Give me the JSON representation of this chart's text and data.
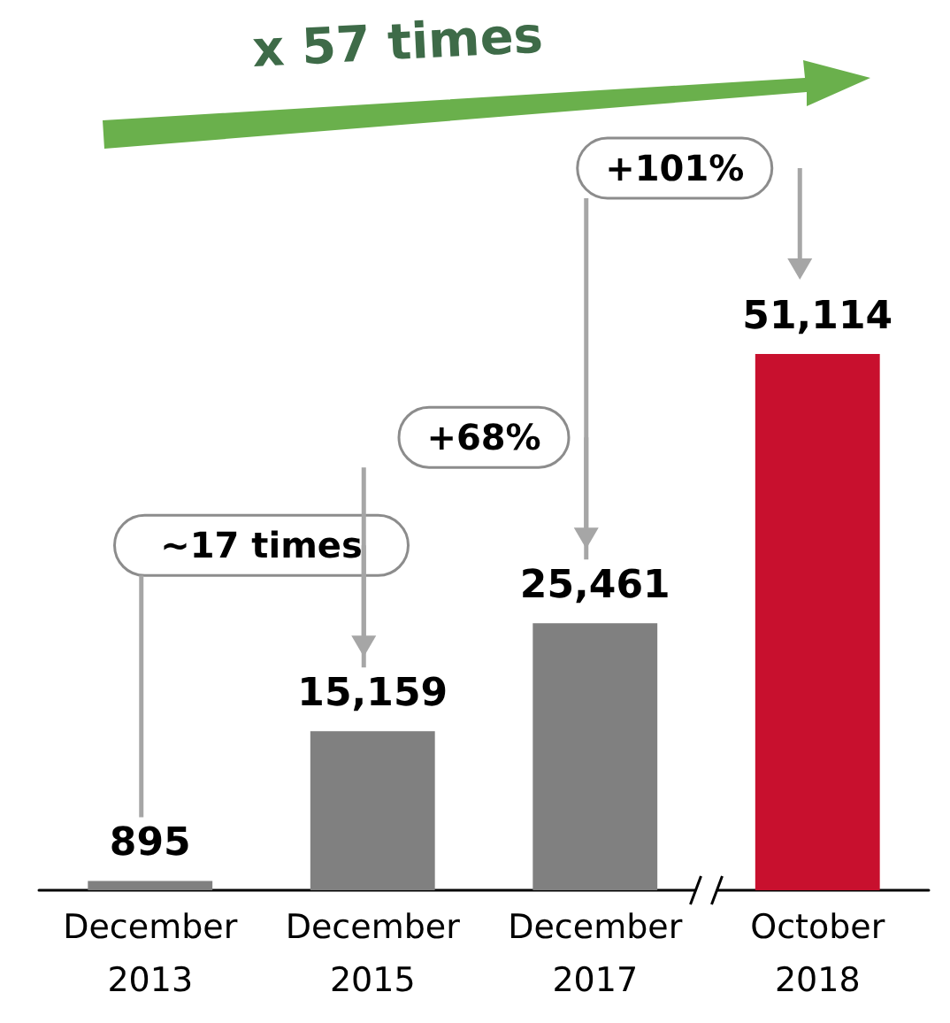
{
  "chart_data": {
    "type": "bar",
    "categories": [
      "December\n2013",
      "December\n2015",
      "December\n2017",
      "October\n2018"
    ],
    "values": [
      895,
      15159,
      25461,
      51114
    ],
    "colors": [
      "#808080",
      "#808080",
      "#808080",
      "#c8102e"
    ],
    "value_labels": [
      "895",
      "15,159",
      "25,461",
      "51,114"
    ],
    "annotations": [
      "x 57 times",
      "~17 times",
      "+68%",
      "+101%"
    ]
  }
}
